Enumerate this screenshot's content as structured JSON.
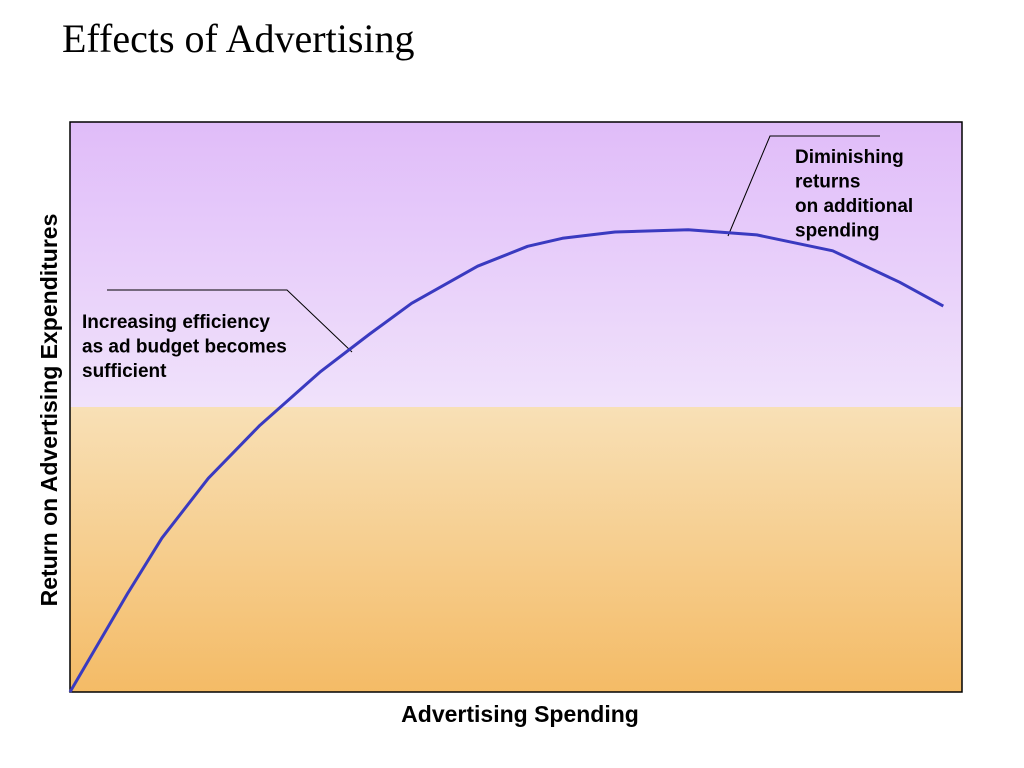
{
  "chart_data": {
    "type": "line",
    "title": "Effects of Advertising",
    "x_label": "Advertising Spending",
    "y_label": "Return on Advertising Expenditures",
    "x": [
      0,
      6.5,
      10.3,
      15.5,
      21.3,
      28.0,
      33.6,
      38.3,
      45.7,
      51.3,
      55.2,
      61.1,
      69.3,
      77.0,
      85.5,
      93.0,
      97.9
    ],
    "values": [
      0,
      17.4,
      27.0,
      37.5,
      46.8,
      56.1,
      62.8,
      68.2,
      74.7,
      78.2,
      79.6,
      80.7,
      81.1,
      80.2,
      77.4,
      71.9,
      67.7
    ],
    "color": "#3a3ac0",
    "xlim": [
      0,
      100
    ],
    "ylim": [
      0,
      100
    ],
    "annotations": [
      {
        "lines": [
          "Increasing efficiency",
          "as ad budget becomes",
          "sufficient"
        ]
      },
      {
        "lines": [
          "Diminishing",
          "returns",
          "on additional",
          "spending"
        ]
      }
    ]
  }
}
